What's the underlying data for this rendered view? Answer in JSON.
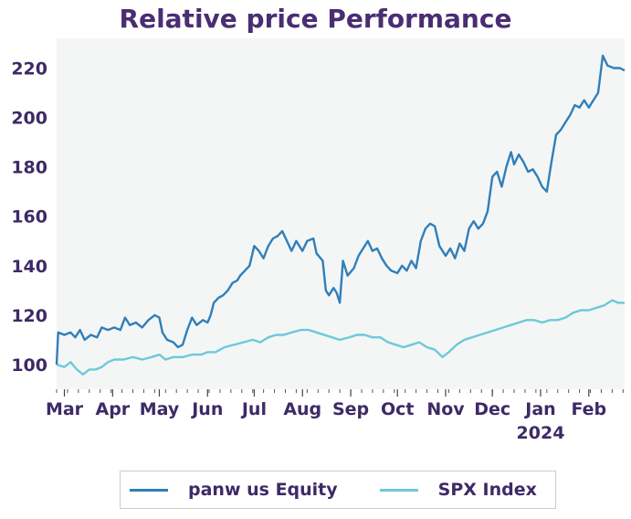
{
  "chart_data": {
    "type": "line",
    "title": "Relative price Performance",
    "xlabel": "",
    "ylabel": "",
    "ylim": [
      90,
      232
    ],
    "yticks": [
      100,
      120,
      140,
      160,
      180,
      200,
      220
    ],
    "xlim": [
      "2023-02-24",
      "2024-02-24"
    ],
    "xticks": [
      {
        "date": "2023-03-01",
        "label": "Mar"
      },
      {
        "date": "2023-04-01",
        "label": "Apr"
      },
      {
        "date": "2023-05-01",
        "label": "May"
      },
      {
        "date": "2023-06-01",
        "label": "Jun"
      },
      {
        "date": "2023-07-01",
        "label": "Jul"
      },
      {
        "date": "2023-08-01",
        "label": "Aug"
      },
      {
        "date": "2023-09-01",
        "label": "Sep"
      },
      {
        "date": "2023-10-01",
        "label": "Oct"
      },
      {
        "date": "2023-11-01",
        "label": "Nov"
      },
      {
        "date": "2023-12-01",
        "label": "Dec"
      },
      {
        "date": "2024-01-01",
        "label": "Jan",
        "sublabel": "2024"
      },
      {
        "date": "2024-02-01",
        "label": "Feb"
      }
    ],
    "grid": false,
    "legend_position": "bottom",
    "series": [
      {
        "name": "panw us Equity",
        "color": "#2f7fba",
        "points": [
          [
            "2023-02-24",
            100
          ],
          [
            "2023-02-25",
            113
          ],
          [
            "2023-03-01",
            112
          ],
          [
            "2023-03-05",
            113
          ],
          [
            "2023-03-08",
            111
          ],
          [
            "2023-03-11",
            114
          ],
          [
            "2023-03-14",
            110
          ],
          [
            "2023-03-18",
            112
          ],
          [
            "2023-03-22",
            111
          ],
          [
            "2023-03-25",
            115
          ],
          [
            "2023-03-29",
            114
          ],
          [
            "2023-04-02",
            115
          ],
          [
            "2023-04-06",
            114
          ],
          [
            "2023-04-09",
            119
          ],
          [
            "2023-04-12",
            116
          ],
          [
            "2023-04-16",
            117
          ],
          [
            "2023-04-20",
            115
          ],
          [
            "2023-04-24",
            118
          ],
          [
            "2023-04-28",
            120
          ],
          [
            "2023-05-01",
            119
          ],
          [
            "2023-05-03",
            113
          ],
          [
            "2023-05-06",
            110
          ],
          [
            "2023-05-10",
            109
          ],
          [
            "2023-05-13",
            107
          ],
          [
            "2023-05-16",
            108
          ],
          [
            "2023-05-19",
            114
          ],
          [
            "2023-05-22",
            119
          ],
          [
            "2023-05-25",
            116
          ],
          [
            "2023-05-29",
            118
          ],
          [
            "2023-06-01",
            117
          ],
          [
            "2023-06-03",
            120
          ],
          [
            "2023-06-05",
            125
          ],
          [
            "2023-06-08",
            127
          ],
          [
            "2023-06-11",
            128
          ],
          [
            "2023-06-14",
            130
          ],
          [
            "2023-06-17",
            133
          ],
          [
            "2023-06-20",
            134
          ],
          [
            "2023-06-22",
            136
          ],
          [
            "2023-06-25",
            138
          ],
          [
            "2023-06-28",
            140
          ],
          [
            "2023-07-01",
            148
          ],
          [
            "2023-07-04",
            146
          ],
          [
            "2023-07-07",
            143
          ],
          [
            "2023-07-10",
            148
          ],
          [
            "2023-07-13",
            151
          ],
          [
            "2023-07-16",
            152
          ],
          [
            "2023-07-19",
            154
          ],
          [
            "2023-07-22",
            150
          ],
          [
            "2023-07-25",
            146
          ],
          [
            "2023-07-28",
            150
          ],
          [
            "2023-08-01",
            146
          ],
          [
            "2023-08-04",
            150
          ],
          [
            "2023-08-08",
            151
          ],
          [
            "2023-08-10",
            145
          ],
          [
            "2023-08-14",
            142
          ],
          [
            "2023-08-16",
            130
          ],
          [
            "2023-08-18",
            128
          ],
          [
            "2023-08-21",
            131
          ],
          [
            "2023-08-23",
            129
          ],
          [
            "2023-08-25",
            125
          ],
          [
            "2023-08-27",
            142
          ],
          [
            "2023-08-30",
            136
          ],
          [
            "2023-09-03",
            139
          ],
          [
            "2023-09-06",
            144
          ],
          [
            "2023-09-09",
            147
          ],
          [
            "2023-09-12",
            150
          ],
          [
            "2023-09-15",
            146
          ],
          [
            "2023-09-18",
            147
          ],
          [
            "2023-09-21",
            143
          ],
          [
            "2023-09-24",
            140
          ],
          [
            "2023-09-27",
            138
          ],
          [
            "2023-10-01",
            137
          ],
          [
            "2023-10-04",
            140
          ],
          [
            "2023-10-07",
            138
          ],
          [
            "2023-10-10",
            142
          ],
          [
            "2023-10-13",
            139
          ],
          [
            "2023-10-16",
            150
          ],
          [
            "2023-10-19",
            155
          ],
          [
            "2023-10-22",
            157
          ],
          [
            "2023-10-25",
            156
          ],
          [
            "2023-10-28",
            148
          ],
          [
            "2023-11-01",
            144
          ],
          [
            "2023-11-04",
            147
          ],
          [
            "2023-11-07",
            143
          ],
          [
            "2023-11-10",
            149
          ],
          [
            "2023-11-13",
            146
          ],
          [
            "2023-11-16",
            155
          ],
          [
            "2023-11-19",
            158
          ],
          [
            "2023-11-22",
            155
          ],
          [
            "2023-11-25",
            157
          ],
          [
            "2023-11-28",
            162
          ],
          [
            "2023-12-01",
            176
          ],
          [
            "2023-12-04",
            178
          ],
          [
            "2023-12-07",
            172
          ],
          [
            "2023-12-10",
            180
          ],
          [
            "2023-12-13",
            186
          ],
          [
            "2023-12-15",
            181
          ],
          [
            "2023-12-18",
            185
          ],
          [
            "2023-12-21",
            182
          ],
          [
            "2023-12-24",
            178
          ],
          [
            "2023-12-27",
            179
          ],
          [
            "2023-12-30",
            176
          ],
          [
            "2024-01-02",
            172
          ],
          [
            "2024-01-05",
            170
          ],
          [
            "2024-01-08",
            182
          ],
          [
            "2024-01-11",
            193
          ],
          [
            "2024-01-14",
            195
          ],
          [
            "2024-01-17",
            198
          ],
          [
            "2024-01-20",
            201
          ],
          [
            "2024-01-23",
            205
          ],
          [
            "2024-01-26",
            204
          ],
          [
            "2024-01-29",
            207
          ],
          [
            "2024-02-01",
            204
          ],
          [
            "2024-02-04",
            207
          ],
          [
            "2024-02-07",
            210
          ],
          [
            "2024-02-10",
            225
          ],
          [
            "2024-02-13",
            221
          ],
          [
            "2024-02-17",
            220
          ],
          [
            "2024-02-21",
            220
          ],
          [
            "2024-02-24",
            219
          ]
        ]
      },
      {
        "name": "SPX Index",
        "color": "#6dc9d9",
        "points": [
          [
            "2023-02-24",
            100
          ],
          [
            "2023-03-01",
            99
          ],
          [
            "2023-03-05",
            101
          ],
          [
            "2023-03-09",
            98
          ],
          [
            "2023-03-13",
            96
          ],
          [
            "2023-03-17",
            98
          ],
          [
            "2023-03-21",
            98
          ],
          [
            "2023-03-25",
            99
          ],
          [
            "2023-03-29",
            101
          ],
          [
            "2023-04-02",
            102
          ],
          [
            "2023-04-08",
            102
          ],
          [
            "2023-04-14",
            103
          ],
          [
            "2023-04-20",
            102
          ],
          [
            "2023-04-26",
            103
          ],
          [
            "2023-05-01",
            104
          ],
          [
            "2023-05-05",
            102
          ],
          [
            "2023-05-10",
            103
          ],
          [
            "2023-05-16",
            103
          ],
          [
            "2023-05-22",
            104
          ],
          [
            "2023-05-28",
            104
          ],
          [
            "2023-06-01",
            105
          ],
          [
            "2023-06-06",
            105
          ],
          [
            "2023-06-12",
            107
          ],
          [
            "2023-06-18",
            108
          ],
          [
            "2023-06-24",
            109
          ],
          [
            "2023-06-30",
            110
          ],
          [
            "2023-07-05",
            109
          ],
          [
            "2023-07-10",
            111
          ],
          [
            "2023-07-15",
            112
          ],
          [
            "2023-07-20",
            112
          ],
          [
            "2023-07-25",
            113
          ],
          [
            "2023-07-31",
            114
          ],
          [
            "2023-08-05",
            114
          ],
          [
            "2023-08-10",
            113
          ],
          [
            "2023-08-15",
            112
          ],
          [
            "2023-08-20",
            111
          ],
          [
            "2023-08-25",
            110
          ],
          [
            "2023-08-31",
            111
          ],
          [
            "2023-09-05",
            112
          ],
          [
            "2023-09-10",
            112
          ],
          [
            "2023-09-15",
            111
          ],
          [
            "2023-09-20",
            111
          ],
          [
            "2023-09-25",
            109
          ],
          [
            "2023-09-30",
            108
          ],
          [
            "2023-10-05",
            107
          ],
          [
            "2023-10-10",
            108
          ],
          [
            "2023-10-15",
            109
          ],
          [
            "2023-10-20",
            107
          ],
          [
            "2023-10-25",
            106
          ],
          [
            "2023-10-30",
            103
          ],
          [
            "2023-11-03",
            105
          ],
          [
            "2023-11-08",
            108
          ],
          [
            "2023-11-13",
            110
          ],
          [
            "2023-11-18",
            111
          ],
          [
            "2023-11-23",
            112
          ],
          [
            "2023-11-28",
            113
          ],
          [
            "2023-12-03",
            114
          ],
          [
            "2023-12-08",
            115
          ],
          [
            "2023-12-13",
            116
          ],
          [
            "2023-12-18",
            117
          ],
          [
            "2023-12-23",
            118
          ],
          [
            "2023-12-28",
            118
          ],
          [
            "2024-01-02",
            117
          ],
          [
            "2024-01-07",
            118
          ],
          [
            "2024-01-12",
            118
          ],
          [
            "2024-01-17",
            119
          ],
          [
            "2024-01-22",
            121
          ],
          [
            "2024-01-27",
            122
          ],
          [
            "2024-02-01",
            122
          ],
          [
            "2024-02-06",
            123
          ],
          [
            "2024-02-11",
            124
          ],
          [
            "2024-02-16",
            126
          ],
          [
            "2024-02-20",
            125
          ],
          [
            "2024-02-24",
            125
          ]
        ]
      }
    ]
  }
}
